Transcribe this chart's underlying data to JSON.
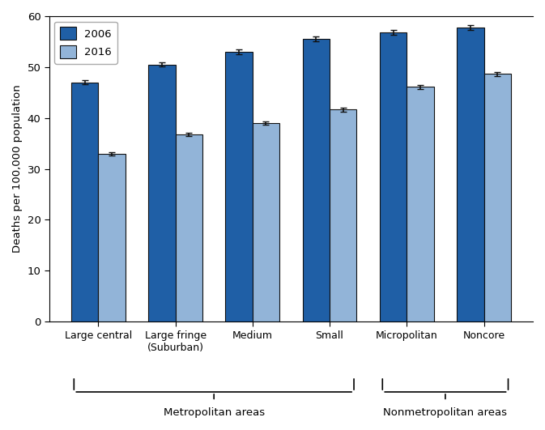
{
  "categories": [
    "Large central",
    "Large fringe\n(Suburban)",
    "Medium",
    "Small",
    "Micropolitan",
    "Noncore"
  ],
  "values_2006": [
    47.0,
    50.5,
    53.0,
    55.5,
    56.8,
    57.8
  ],
  "values_2016": [
    33.0,
    36.8,
    39.0,
    41.7,
    46.1,
    48.7
  ],
  "errors_2006": [
    0.4,
    0.4,
    0.4,
    0.5,
    0.5,
    0.5
  ],
  "errors_2016": [
    0.3,
    0.3,
    0.3,
    0.4,
    0.4,
    0.4
  ],
  "color_2006": "#1F5FA6",
  "color_2016": "#92B4D8",
  "bar_edgecolor": "#111111",
  "ylabel": "Deaths per 100,000 population",
  "ylim": [
    0,
    60
  ],
  "yticks": [
    0,
    10,
    20,
    30,
    40,
    50,
    60
  ],
  "legend_labels": [
    "2006",
    "2016"
  ],
  "metro_label": "Metropolitan areas",
  "nonmetro_label": "Nonmetropolitan areas",
  "bar_width": 0.35,
  "background_color": "#ffffff",
  "error_capsize": 3,
  "error_color": "#111111",
  "error_linewidth": 1.2
}
